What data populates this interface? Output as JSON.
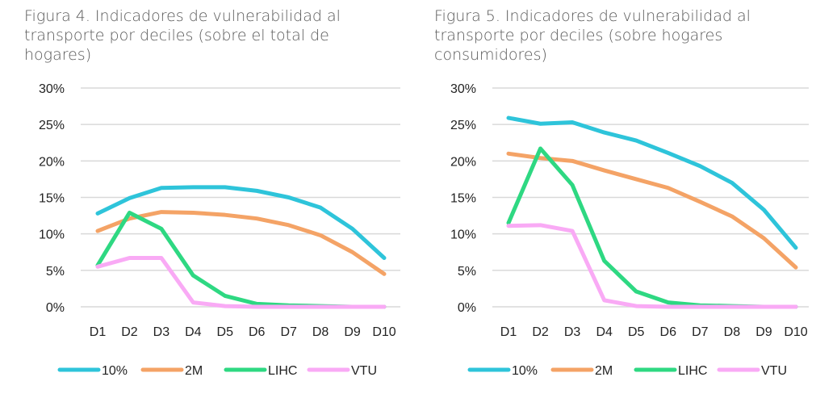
{
  "chart_data": [
    {
      "type": "line",
      "title": "Figura 4. Indicadores de vulnerabilidad al transporte por deciles (sobre el total de hogares)",
      "categories": [
        "D1",
        "D2",
        "D3",
        "D4",
        "D5",
        "D6",
        "D7",
        "D8",
        "D9",
        "D10"
      ],
      "yticks": [
        "0%",
        "5%",
        "10%",
        "15%",
        "20%",
        "25%",
        "30%"
      ],
      "ylim": [
        0,
        30
      ],
      "grid": true,
      "legend": "bottom",
      "series": [
        {
          "name": "10%",
          "color": "#2EC4DA",
          "values": [
            12.8,
            14.9,
            16.3,
            16.4,
            16.4,
            15.9,
            15.0,
            13.6,
            10.7,
            6.7
          ]
        },
        {
          "name": "2M",
          "color": "#F4A366",
          "values": [
            10.4,
            12.1,
            13.0,
            12.9,
            12.6,
            12.1,
            11.2,
            9.8,
            7.5,
            4.5
          ]
        },
        {
          "name": "LIHC",
          "color": "#2ED882",
          "values": [
            5.7,
            12.9,
            10.7,
            4.3,
            1.5,
            0.4,
            0.2,
            0.1,
            0,
            0
          ]
        },
        {
          "name": "VTU",
          "color": "#F9AAF5",
          "values": [
            5.5,
            6.7,
            6.7,
            0.6,
            0.1,
            0,
            0,
            0,
            0,
            0
          ]
        }
      ]
    },
    {
      "type": "line",
      "title": "Figura 5. Indicadores de vulnerabilidad al transporte por deciles (sobre hogares consumidores)",
      "categories": [
        "D1",
        "D2",
        "D3",
        "D4",
        "D5",
        "D6",
        "D7",
        "D8",
        "D9",
        "D10"
      ],
      "yticks": [
        "0%",
        "5%",
        "10%",
        "15%",
        "20%",
        "25%",
        "30%"
      ],
      "ylim": [
        0,
        30
      ],
      "grid": true,
      "legend": "bottom",
      "series": [
        {
          "name": "10%",
          "color": "#2EC4DA",
          "values": [
            25.9,
            25.1,
            25.3,
            23.9,
            22.8,
            21.1,
            19.3,
            17.0,
            13.3,
            8.1
          ]
        },
        {
          "name": "2M",
          "color": "#F4A366",
          "values": [
            21.0,
            20.4,
            20.0,
            18.7,
            17.5,
            16.3,
            14.4,
            12.4,
            9.4,
            5.4
          ]
        },
        {
          "name": "LIHC",
          "color": "#2ED882",
          "values": [
            11.5,
            21.7,
            16.7,
            6.3,
            2.1,
            0.6,
            0.2,
            0.1,
            0,
            0
          ]
        },
        {
          "name": "VTU",
          "color": "#F9AAF5",
          "values": [
            11.1,
            11.2,
            10.4,
            0.9,
            0.1,
            0,
            0,
            0,
            0,
            0
          ]
        }
      ]
    }
  ]
}
